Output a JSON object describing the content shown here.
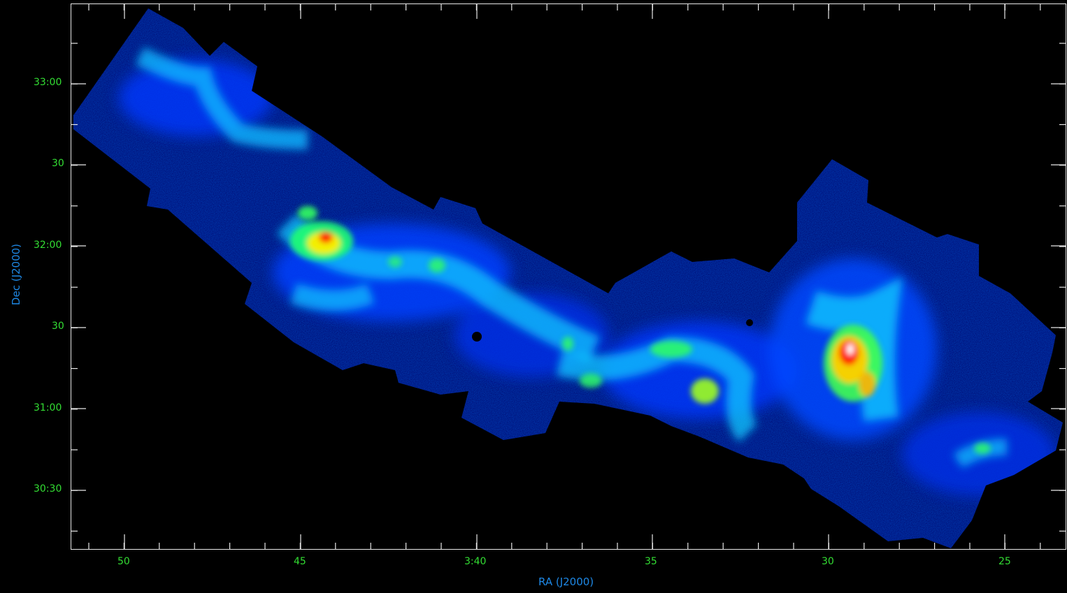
{
  "axes": {
    "x_title": "RA (J2000)",
    "y_title": "Dec (J2000)",
    "x_ticks": [
      "50",
      "45",
      "3:40",
      "35",
      "30",
      "25"
    ],
    "y_ticks": [
      "33:00",
      "30",
      "32:00",
      "30",
      "31:00",
      "30:30"
    ]
  },
  "colors": {
    "background": "#000000",
    "frame": "#e8e8e8",
    "tick_label": "#33dd33",
    "axis_title": "#1e88e5",
    "colormap": [
      "#00008b",
      "#0030ff",
      "#00c8ff",
      "#00ff80",
      "#ffff00",
      "#ff2000",
      "#ffffff"
    ]
  }
}
